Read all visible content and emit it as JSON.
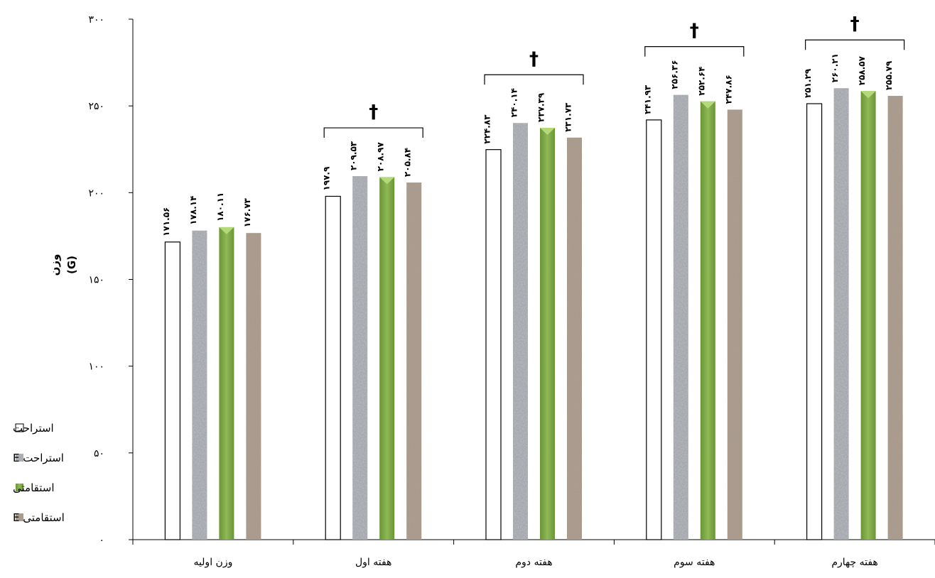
{
  "chart_data": {
    "type": "bar",
    "categories": [
      "وزن اولیه",
      "هفته اول",
      "هفته دوم",
      "هفته سوم",
      "هفته چهارم"
    ],
    "series": [
      {
        "name": "استراحت",
        "values": [
          171.56,
          197.9,
          224.83,
          241.93,
          251.29
        ],
        "labels": [
          "۱۷۱.۵۶",
          "۱۹۷.۹",
          "۲۲۴.۸۳",
          "۲۴۱.۹۳",
          "۲۵۱.۲۹"
        ],
        "color": "#ffffff"
      },
      {
        "name": "استراحت E",
        "values": [
          178.14,
          209.53,
          240.14,
          256.36,
          260.21
        ],
        "labels": [
          "۱۷۸.۱۴",
          "۲۰۹.۵۳",
          "۲۴۰.۱۴",
          "۲۵۶.۳۶",
          "۲۶۰.۲۱"
        ],
        "color": "#a4a7ad"
      },
      {
        "name": "استقامتی",
        "values": [
          180.11,
          208.97,
          237.39,
          252.64,
          258.57
        ],
        "labels": [
          "۱۸۰.۱۱",
          "۲۰۸.۹۷",
          "۲۳۷.۳۹",
          "۲۵۲.۶۴",
          "۲۵۸.۵۷"
        ],
        "color": "#7fa84a"
      },
      {
        "name": "استقامتی E",
        "values": [
          176.73,
          205.84,
          231.73,
          247.86,
          255.79
        ],
        "labels": [
          "۱۷۶.۷۳",
          "۲۰۵.۸۴",
          "۲۳۱.۷۳",
          "۲۴۷.۸۶",
          "۲۵۵.۷۹"
        ],
        "color": "#a99a8c"
      }
    ],
    "ylabel": "وزن",
    "yunit": "(G)",
    "ylim": [
      0,
      300
    ],
    "yticks": [
      0,
      50,
      100,
      150,
      200,
      250,
      300
    ],
    "ytick_labels": [
      "۰",
      "۵۰",
      "۱۰۰",
      "۱۵۰",
      "۲۰۰",
      "۲۵۰",
      "۳۰۰"
    ],
    "significance_marker": "†",
    "significant_categories": [
      "هفته اول",
      "هفته دوم",
      "هفته سوم",
      "هفته چهارم"
    ],
    "legend_position": "left",
    "grid": false
  }
}
